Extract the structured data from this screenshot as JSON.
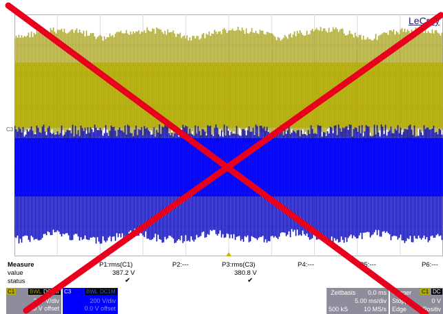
{
  "brand": "LeCroy",
  "channel_marker": "C3",
  "measure": {
    "title": "Measure",
    "row_labels": [
      "value",
      "status"
    ],
    "params": [
      {
        "name": "P1:rms(C1)",
        "value": "387.2 V",
        "status": "✔"
      },
      {
        "name": "P2:---",
        "value": "",
        "status": ""
      },
      {
        "name": "P3:rms(C3)",
        "value": "380.8 V",
        "status": "✔"
      },
      {
        "name": "P4:---",
        "value": "",
        "status": ""
      },
      {
        "name": "P5:---",
        "value": "",
        "status": ""
      },
      {
        "name": "P6:---",
        "value": "",
        "status": ""
      }
    ]
  },
  "channels": [
    {
      "id": "C1",
      "tags": [
        "BWL",
        "DC1M"
      ],
      "scale": "200 V/div",
      "offset": "0.0 V offset",
      "color": "#b4ac00"
    },
    {
      "id": "C3",
      "tags": [
        "BWL",
        "DC1M"
      ],
      "scale": "200 V/div",
      "offset": "0.0 V offset",
      "color": "#0000ff"
    }
  ],
  "timebase": {
    "label": "Zeitbasis",
    "delay": "0.0 ms",
    "per_div": "5.00 ms/div",
    "samples": "500 kS",
    "rate": "10 MS/s"
  },
  "trigger": {
    "label": "Trigger",
    "source": "C1",
    "coupling": "DC",
    "mode": "Stopp",
    "level": "0 V",
    "type": "Edge",
    "slope": "Positiv"
  },
  "colors": {
    "c1": "#b4ac00",
    "c3": "#0000ff",
    "cross": "#e8001c",
    "grid": "#b0b0b0",
    "panel": "#8d8d9b"
  }
}
